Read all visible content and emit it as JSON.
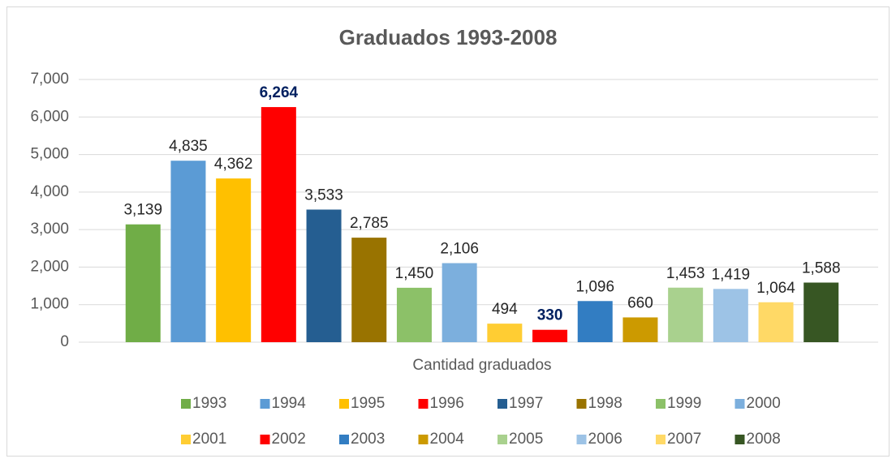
{
  "chart_data": {
    "type": "bar",
    "title": "Graduados 1993-2008",
    "categories": [
      "Cantidad graduados"
    ],
    "ylim": [
      0,
      7000
    ],
    "yticks": [
      0,
      {
        "value": 1000,
        "label": "1,000"
      },
      {
        "value": 2000,
        "label": "2,000"
      },
      {
        "value": 3000,
        "label": "3,000"
      },
      {
        "value": 4000,
        "label": "4,000"
      },
      {
        "value": 5000,
        "label": "5,000"
      },
      {
        "value": 6000,
        "label": "6,000"
      },
      {
        "value": 7000,
        "label": "7,000"
      }
    ],
    "grid": true,
    "legend": "bottom",
    "series": [
      {
        "name": "1993",
        "color": "#70ad47",
        "values": [
          3139
        ],
        "value_labels": [
          "3,139"
        ]
      },
      {
        "name": "1994",
        "color": "#5b9bd5",
        "values": [
          4835
        ],
        "value_labels": [
          "4,835"
        ]
      },
      {
        "name": "1995",
        "color": "#ffc000",
        "values": [
          4362
        ],
        "value_labels": [
          "4,362"
        ]
      },
      {
        "name": "1996",
        "color": "#ff0000",
        "values": [
          6264
        ],
        "value_labels": [
          "6,264"
        ],
        "label_color": "#002060",
        "label_weight": "bold"
      },
      {
        "name": "1997",
        "color": "#255e91",
        "values": [
          3533
        ],
        "value_labels": [
          "3,533"
        ]
      },
      {
        "name": "1998",
        "color": "#997300",
        "values": [
          2785
        ],
        "value_labels": [
          "2,785"
        ]
      },
      {
        "name": "1999",
        "color": "#8cc168",
        "values": [
          1450
        ],
        "value_labels": [
          "1,450"
        ]
      },
      {
        "name": "2000",
        "color": "#7cafdd",
        "values": [
          2106
        ],
        "value_labels": [
          "2,106"
        ]
      },
      {
        "name": "2001",
        "color": "#ffcd33",
        "values": [
          494
        ],
        "value_labels": [
          "494"
        ]
      },
      {
        "name": "2002",
        "color": "#ff0000",
        "values": [
          330
        ],
        "value_labels": [
          "330"
        ],
        "label_color": "#002060",
        "label_weight": "bold"
      },
      {
        "name": "2003",
        "color": "#327dc2",
        "values": [
          1096
        ],
        "value_labels": [
          "1,096"
        ]
      },
      {
        "name": "2004",
        "color": "#cc9a00",
        "values": [
          660
        ],
        "value_labels": [
          "660"
        ]
      },
      {
        "name": "2005",
        "color": "#a9d18e",
        "values": [
          1453
        ],
        "value_labels": [
          "1,453"
        ]
      },
      {
        "name": "2006",
        "color": "#9dc3e6",
        "values": [
          1419
        ],
        "value_labels": [
          "1,419"
        ]
      },
      {
        "name": "2007",
        "color": "#ffd966",
        "values": [
          1064
        ],
        "value_labels": [
          "1,064"
        ]
      },
      {
        "name": "2008",
        "color": "#375623",
        "values": [
          1588
        ],
        "value_labels": [
          "1,588"
        ]
      }
    ]
  }
}
